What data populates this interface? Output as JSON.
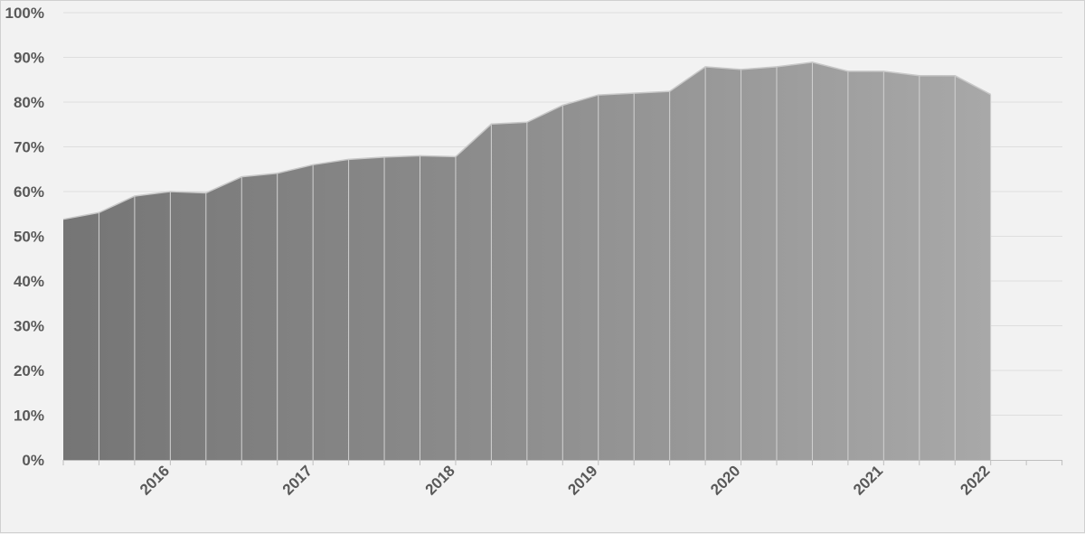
{
  "chart_data": {
    "type": "area",
    "title": "",
    "xlabel": "",
    "ylabel": "",
    "ylim": [
      0,
      100
    ],
    "y_ticks": [
      "0%",
      "10%",
      "20%",
      "30%",
      "40%",
      "50%",
      "60%",
      "70%",
      "80%",
      "90%",
      "100%"
    ],
    "x_ticks": [
      "2016",
      "2017",
      "2018",
      "2019",
      "2020",
      "2021",
      "2022"
    ],
    "grid": "horizontal",
    "legend": "none",
    "series": [
      {
        "values": [
          53.8,
          55.3,
          59.0,
          60.0,
          59.7,
          63.3,
          64.1,
          66.0,
          67.2,
          67.7,
          68.0,
          67.8,
          75.1,
          75.5,
          79.3,
          81.6,
          82.0,
          82.4,
          87.9,
          87.3,
          87.9,
          88.9,
          86.9,
          86.9,
          85.9,
          85.9,
          81.7
        ]
      }
    ],
    "colors": {
      "fill_start": "#757575",
      "fill_end": "#a8a8a8",
      "outline": "#c8c8c8",
      "divider": "#d2d2d2",
      "gridline": "#dedede",
      "axis": "#bfbfbf",
      "text": "#595959"
    }
  }
}
